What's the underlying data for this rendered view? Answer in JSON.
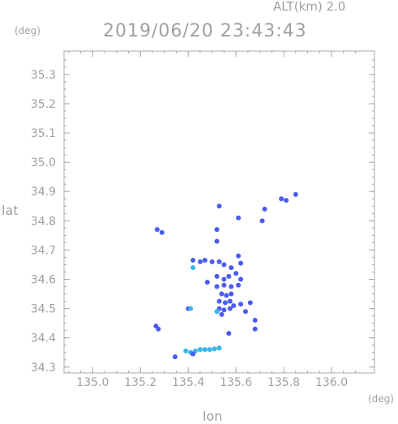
{
  "header": {
    "altitude": "ALT(km) 2.0",
    "timestamp": "2019/06/20 23:43:43",
    "y_unit": "(deg)",
    "x_unit": "(deg)"
  },
  "chart_data": {
    "type": "scatter",
    "title": "2019/06/20 23:43:43",
    "xlabel": "lon",
    "ylabel": "lat",
    "xlim": [
      134.88,
      136.18
    ],
    "ylim": [
      34.28,
      35.38
    ],
    "xticks": [
      135.0,
      135.2,
      135.4,
      135.6,
      135.8,
      136.0
    ],
    "xtick_labels": [
      "135.0",
      "135.2",
      "135.4",
      "135.6",
      "135.8",
      "136.0"
    ],
    "yticks": [
      34.3,
      34.4,
      34.5,
      34.6,
      34.7,
      34.8,
      34.9,
      35.0,
      35.1,
      35.2,
      35.3
    ],
    "ytick_labels": [
      "34.3",
      "34.4",
      "34.5",
      "34.6",
      "34.7",
      "34.8",
      "34.9",
      "35.0",
      "35.1",
      "35.2",
      "35.3"
    ],
    "grid": false,
    "colors": {
      "strong": "#4a5cf0",
      "weak": "#3ab6e8",
      "frame": "#a8a8a8"
    },
    "points": [
      {
        "x": 135.53,
        "y": 34.85,
        "level": "strong"
      },
      {
        "x": 135.61,
        "y": 34.81,
        "level": "strong"
      },
      {
        "x": 135.72,
        "y": 34.84,
        "level": "strong"
      },
      {
        "x": 135.71,
        "y": 34.8,
        "level": "strong"
      },
      {
        "x": 135.79,
        "y": 34.875,
        "level": "strong"
      },
      {
        "x": 135.81,
        "y": 34.87,
        "level": "strong"
      },
      {
        "x": 135.85,
        "y": 34.89,
        "level": "strong"
      },
      {
        "x": 135.27,
        "y": 34.77,
        "level": "strong"
      },
      {
        "x": 135.29,
        "y": 34.76,
        "level": "strong"
      },
      {
        "x": 135.52,
        "y": 34.77,
        "level": "strong"
      },
      {
        "x": 135.52,
        "y": 34.73,
        "level": "strong"
      },
      {
        "x": 135.42,
        "y": 34.665,
        "level": "strong"
      },
      {
        "x": 135.45,
        "y": 34.66,
        "level": "strong"
      },
      {
        "x": 135.47,
        "y": 34.665,
        "level": "strong"
      },
      {
        "x": 135.42,
        "y": 34.64,
        "level": "weak"
      },
      {
        "x": 135.5,
        "y": 34.66,
        "level": "strong"
      },
      {
        "x": 135.53,
        "y": 34.66,
        "level": "strong"
      },
      {
        "x": 135.55,
        "y": 34.65,
        "level": "strong"
      },
      {
        "x": 135.58,
        "y": 34.64,
        "level": "strong"
      },
      {
        "x": 135.61,
        "y": 34.68,
        "level": "strong"
      },
      {
        "x": 135.62,
        "y": 34.655,
        "level": "strong"
      },
      {
        "x": 135.52,
        "y": 34.61,
        "level": "strong"
      },
      {
        "x": 135.55,
        "y": 34.6,
        "level": "strong"
      },
      {
        "x": 135.57,
        "y": 34.61,
        "level": "strong"
      },
      {
        "x": 135.6,
        "y": 34.62,
        "level": "strong"
      },
      {
        "x": 135.62,
        "y": 34.6,
        "level": "strong"
      },
      {
        "x": 135.48,
        "y": 34.59,
        "level": "strong"
      },
      {
        "x": 135.52,
        "y": 34.575,
        "level": "strong"
      },
      {
        "x": 135.55,
        "y": 34.58,
        "level": "strong"
      },
      {
        "x": 135.58,
        "y": 34.575,
        "level": "strong"
      },
      {
        "x": 135.61,
        "y": 34.58,
        "level": "strong"
      },
      {
        "x": 135.54,
        "y": 34.55,
        "level": "strong"
      },
      {
        "x": 135.56,
        "y": 34.545,
        "level": "strong"
      },
      {
        "x": 135.58,
        "y": 34.55,
        "level": "strong"
      },
      {
        "x": 135.53,
        "y": 34.525,
        "level": "strong"
      },
      {
        "x": 135.555,
        "y": 34.52,
        "level": "strong"
      },
      {
        "x": 135.575,
        "y": 34.525,
        "level": "strong"
      },
      {
        "x": 135.53,
        "y": 34.5,
        "level": "strong"
      },
      {
        "x": 135.55,
        "y": 34.495,
        "level": "strong"
      },
      {
        "x": 135.575,
        "y": 34.5,
        "level": "strong"
      },
      {
        "x": 135.52,
        "y": 34.49,
        "level": "weak"
      },
      {
        "x": 135.54,
        "y": 34.48,
        "level": "strong"
      },
      {
        "x": 135.59,
        "y": 34.51,
        "level": "strong"
      },
      {
        "x": 135.62,
        "y": 34.515,
        "level": "strong"
      },
      {
        "x": 135.64,
        "y": 34.49,
        "level": "strong"
      },
      {
        "x": 135.66,
        "y": 34.52,
        "level": "strong"
      },
      {
        "x": 135.68,
        "y": 34.46,
        "level": "strong"
      },
      {
        "x": 135.68,
        "y": 34.43,
        "level": "strong"
      },
      {
        "x": 135.4,
        "y": 34.5,
        "level": "strong"
      },
      {
        "x": 135.41,
        "y": 34.5,
        "level": "weak"
      },
      {
        "x": 135.57,
        "y": 34.415,
        "level": "strong"
      },
      {
        "x": 135.265,
        "y": 34.44,
        "level": "strong"
      },
      {
        "x": 135.275,
        "y": 34.43,
        "level": "strong"
      },
      {
        "x": 135.345,
        "y": 34.335,
        "level": "strong"
      },
      {
        "x": 135.39,
        "y": 34.355,
        "level": "weak"
      },
      {
        "x": 135.41,
        "y": 34.35,
        "level": "weak"
      },
      {
        "x": 135.43,
        "y": 34.355,
        "level": "weak"
      },
      {
        "x": 135.45,
        "y": 34.36,
        "level": "weak"
      },
      {
        "x": 135.47,
        "y": 34.36,
        "level": "weak"
      },
      {
        "x": 135.49,
        "y": 34.36,
        "level": "weak"
      },
      {
        "x": 135.51,
        "y": 34.362,
        "level": "weak"
      },
      {
        "x": 135.53,
        "y": 34.365,
        "level": "weak"
      },
      {
        "x": 135.42,
        "y": 34.345,
        "level": "strong"
      }
    ]
  }
}
